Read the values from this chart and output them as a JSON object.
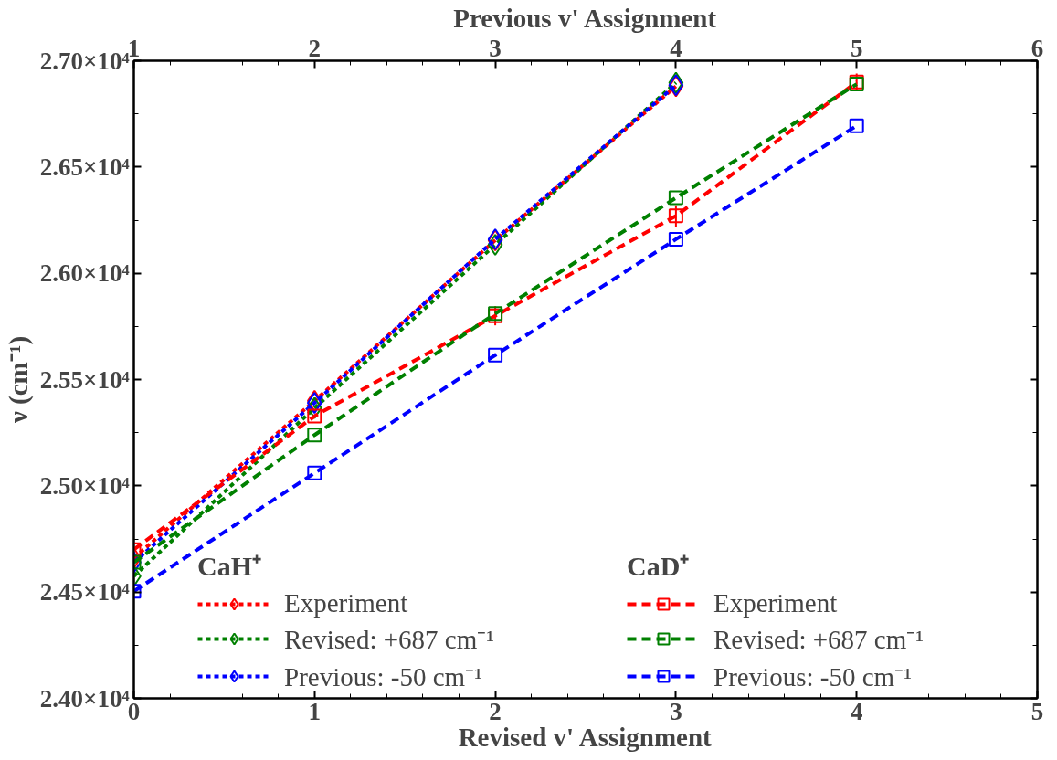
{
  "chart_data": {
    "type": "line",
    "xlabel": "Revised v' Assignment",
    "x2label": "Previous v' Assignment",
    "ylabel": "ν (cm⁻¹)",
    "annotations": [
      "CaH⁺",
      "CaD⁺"
    ],
    "x": [
      0,
      1,
      2,
      3
    ],
    "xlim": [
      0,
      5
    ],
    "xticks": [
      0,
      1,
      2,
      3,
      4,
      5
    ],
    "x2lim": [
      1,
      6
    ],
    "x2ticks": [
      1,
      2,
      3,
      4,
      5,
      6
    ],
    "ylim": [
      24000,
      27000
    ],
    "yticks": [
      {
        "value": 24000,
        "label": "2.40×10⁴"
      },
      {
        "value": 24500,
        "label": "2.45×10⁴"
      },
      {
        "value": 25000,
        "label": "2.50×10⁴"
      },
      {
        "value": 25500,
        "label": "2.55×10⁴"
      },
      {
        "value": 26000,
        "label": "2.60×10⁴"
      },
      {
        "value": 26500,
        "label": "2.65×10⁴"
      },
      {
        "value": 27000,
        "label": "2.70×10⁴"
      }
    ],
    "grid": false,
    "legend": "bottom",
    "series": [
      {
        "name": "Experiment",
        "color": "#ff0000",
        "marker": "diamond",
        "line_style": "dotted",
        "values": [
          24660,
          25400,
          26155,
          26880
        ]
      },
      {
        "name": "Revised: +687 cm⁻¹",
        "color": "#008000",
        "marker": "diamond",
        "line_style": "dotted",
        "values": [
          24575,
          25366,
          26134,
          26897
        ]
      },
      {
        "name": "Previous: -50 cm⁻¹",
        "color": "#0000ff",
        "marker": "diamond",
        "line_style": "dotted",
        "values": [
          24640,
          25390,
          26160,
          26885
        ]
      },
      {
        "name": "Experiment",
        "color": "#ff0000",
        "marker": "square",
        "line_style": "dashed",
        "x": [
          0,
          1,
          2,
          3,
          4
        ],
        "values": [
          24700,
          25328,
          25800,
          26270,
          26900
        ],
        "errors": [
          null,
          null,
          45,
          50,
          40
        ]
      },
      {
        "name": "Revised: +687 cm⁻¹",
        "color": "#008000",
        "marker": "square",
        "line_style": "dashed",
        "x": [
          0,
          1,
          2,
          3,
          4
        ],
        "values": [
          24640,
          25239,
          25810,
          26355,
          26890
        ]
      },
      {
        "name": "Previous: -50 cm⁻¹",
        "color": "#0000ff",
        "marker": "square",
        "line_style": "dashed",
        "x": [
          0,
          1,
          2,
          3,
          4
        ],
        "values": [
          24504,
          25060,
          25615,
          26160,
          26694
        ]
      }
    ]
  }
}
